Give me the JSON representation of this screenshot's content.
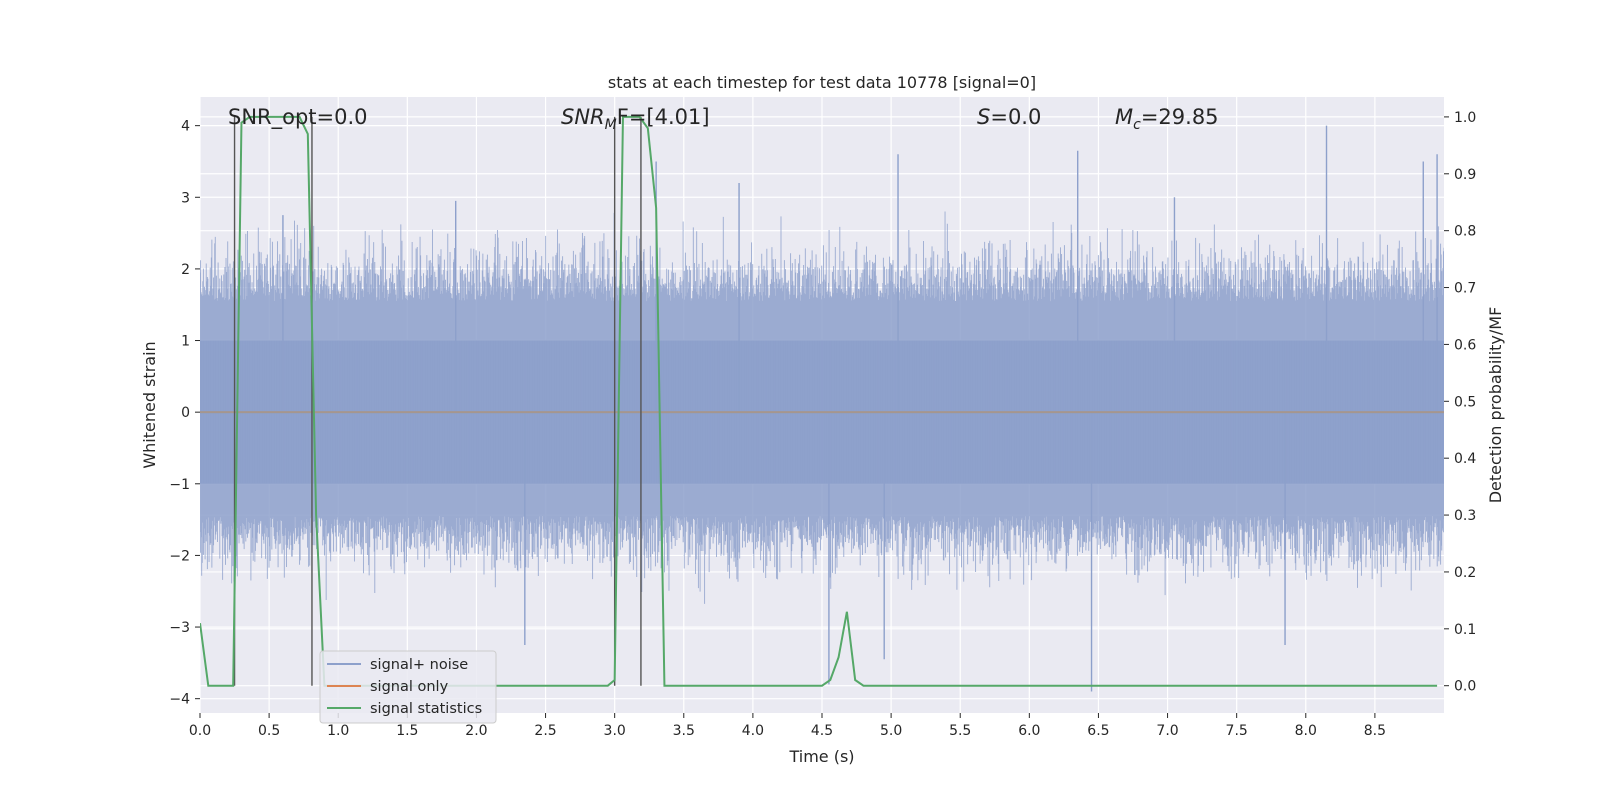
{
  "chart_data": {
    "type": "line",
    "title": "stats at each timestep for test data 10778 [signal=0]",
    "xlabel": "Time (s)",
    "ylabel": "Whitened strain",
    "y2label": "Detection probability/MF",
    "xlim": [
      0.0,
      9.0
    ],
    "ylim": [
      -4.2,
      4.4
    ],
    "y2lim": [
      -0.048,
      1.035
    ],
    "xticks": [
      "0.0",
      "0.5",
      "1.0",
      "1.5",
      "2.0",
      "2.5",
      "3.0",
      "3.5",
      "4.0",
      "4.5",
      "5.0",
      "5.5",
      "6.0",
      "6.5",
      "7.0",
      "7.5",
      "8.0",
      "8.5"
    ],
    "yticks": [
      "4",
      "3",
      "2",
      "1",
      "0",
      "−1",
      "−2",
      "−3",
      "−4"
    ],
    "y2ticks": [
      "1.0",
      "0.9",
      "0.8",
      "0.7",
      "0.6",
      "0.5",
      "0.4",
      "0.3",
      "0.2",
      "0.1",
      "0.0"
    ],
    "grid": true,
    "legend_position": "lower-left",
    "annotations": {
      "snr_opt": "SNR_opt=0.0",
      "snr_mf_base": "SNR",
      "snr_mf_sub": "M",
      "snr_mf_rest": "F=[4.01]",
      "s_var": "S",
      "s_rest": "=0.0",
      "mc_var": "M",
      "mc_sub": "c",
      "mc_rest": "=29.85"
    },
    "series": [
      {
        "name": "signal+ noise",
        "color": "#8da0cb",
        "description_values": {
          "envelope_typical": [
            -1.5,
            1.7
          ],
          "extreme_max": 4.0,
          "extreme_min": -3.9
        },
        "spikes": [
          {
            "x": 8.15,
            "y": 4.0
          },
          {
            "x": 6.45,
            "y": -3.9
          },
          {
            "x": 4.55,
            "y": -3.8
          },
          {
            "x": 3.3,
            "y": 3.5
          },
          {
            "x": 2.35,
            "y": -3.25
          },
          {
            "x": 4.95,
            "y": -3.45
          },
          {
            "x": 5.05,
            "y": 3.6
          },
          {
            "x": 6.35,
            "y": 3.65
          },
          {
            "x": 7.85,
            "y": -3.25
          },
          {
            "x": 8.95,
            "y": 3.6
          },
          {
            "x": 8.85,
            "y": 3.5
          },
          {
            "x": 0.6,
            "y": 2.75
          },
          {
            "x": 1.85,
            "y": 2.95
          },
          {
            "x": 7.05,
            "y": 3.0
          },
          {
            "x": 3.9,
            "y": 3.2
          }
        ]
      },
      {
        "name": "signal only",
        "color": "#dd8452",
        "values_note": "flat at zero"
      },
      {
        "name": "signal statistics",
        "color": "#55a868",
        "axis": "right",
        "x": [
          0.0,
          0.06,
          0.12,
          0.18,
          0.24,
          0.3,
          0.36,
          0.42,
          0.54,
          0.6,
          0.66,
          0.72,
          0.78,
          0.84,
          0.9,
          1.2,
          2.0,
          2.95,
          3.0,
          3.06,
          3.12,
          3.18,
          3.24,
          3.3,
          3.36,
          3.42,
          4.0,
          4.5,
          4.56,
          4.62,
          4.68,
          4.74,
          4.8,
          5.0,
          6.0,
          7.0,
          8.0,
          8.95
        ],
        "y": [
          0.11,
          0.0,
          0.0,
          0.0,
          0.0,
          0.99,
          1.0,
          1.0,
          1.0,
          1.0,
          1.0,
          1.0,
          0.97,
          0.3,
          0.0,
          0.0,
          0.0,
          0.0,
          0.01,
          1.0,
          1.0,
          1.0,
          0.98,
          0.84,
          0.0,
          0.0,
          0.0,
          0.0,
          0.01,
          0.05,
          0.13,
          0.01,
          0.0,
          0.0,
          0.0,
          0.0,
          0.0,
          0.0
        ]
      }
    ],
    "vertical_markers_x": [
      0.25,
      0.81,
      3.0,
      3.19
    ]
  },
  "colors": {
    "plot_background": "#eaeaf2",
    "grid": "#ffffff",
    "marker_line": "#555555"
  }
}
